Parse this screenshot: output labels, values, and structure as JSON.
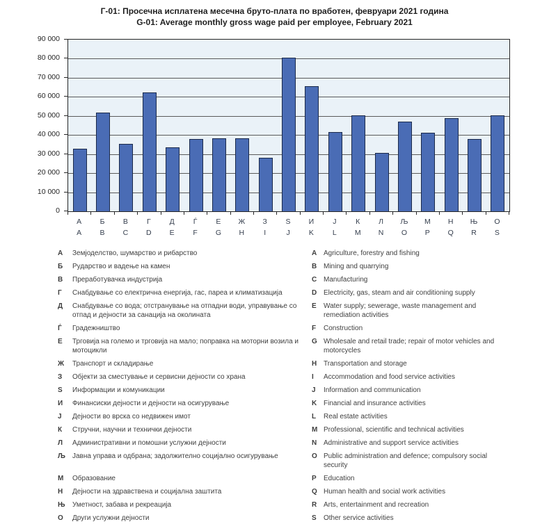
{
  "chart_data": {
    "type": "bar",
    "title_mk": "Г-01: Просечна исплатена месечна бруто-плата по вработен, февруари 2021 година",
    "title_en": "G-01: Average monthly gross wage paid per employee, February 2021",
    "xlabel": "",
    "ylabel": "",
    "ylim": [
      0,
      90000
    ],
    "grid": true,
    "legend_position": "none",
    "yticks": [
      0,
      10000,
      20000,
      30000,
      40000,
      50000,
      60000,
      70000,
      80000,
      90000
    ],
    "ytick_labels": [
      "0",
      "10 000",
      "20 000",
      "30 000",
      "40 000",
      "50 000",
      "60 000",
      "70 000",
      "80 000",
      "90 000"
    ],
    "categories_mk": [
      "А",
      "Б",
      "В",
      "Г",
      "Д",
      "Ѓ",
      "Е",
      "Ж",
      "З",
      "Ѕ",
      "И",
      "Ј",
      "К",
      "Л",
      "Љ",
      "М",
      "Н",
      "Њ",
      "О"
    ],
    "categories_en": [
      "A",
      "B",
      "C",
      "D",
      "E",
      "F",
      "G",
      "H",
      "I",
      "J",
      "K",
      "L",
      "M",
      "N",
      "O",
      "P",
      "Q",
      "R",
      "S"
    ],
    "values": [
      32900,
      51600,
      35200,
      62400,
      33500,
      37900,
      38100,
      38100,
      28000,
      80500,
      65500,
      41500,
      50200,
      30700,
      46900,
      41300,
      49000,
      37900,
      50200
    ],
    "colors": {
      "bar": "#4a6cb5",
      "bar_border": "#1b2a4a",
      "plot_bg": "#eaf2f8",
      "gridline": "#5a5a5a",
      "plot_border": "#262626"
    }
  },
  "legend": {
    "rows": [
      {
        "mk_letter": "А",
        "mk_text": "Земјоделство, шумарство и рибарство",
        "en_letter": "A",
        "en_text": "Agriculture, forestry and fishing"
      },
      {
        "mk_letter": "Б",
        "mk_text": "Рударство и вадење на камен",
        "en_letter": "B",
        "en_text": "Mining and quarrying"
      },
      {
        "mk_letter": "В",
        "mk_text": "Преработувачка индустрија",
        "en_letter": "C",
        "en_text": "Manufacturing"
      },
      {
        "mk_letter": "Г",
        "mk_text": "Снабдување со електрична енергија, гас, пареа и климатизација",
        "en_letter": "D",
        "en_text": "Electricity, gas, steam and air conditioning supply"
      },
      {
        "mk_letter": "Д",
        "mk_text": "Снабдување со вода; отстранување на отпадни води, управување со\nотпад и дејности за санација на околината",
        "en_letter": "E",
        "en_text": "Water supply; sewerage, waste management and\nremediation activities"
      },
      {
        "mk_letter": "Ѓ",
        "mk_text": "Градежништво",
        "en_letter": "F",
        "en_text": "Construction"
      },
      {
        "mk_letter": "Е",
        "mk_text": "Трговија на големо и трговија на мало; поправка на моторни возила и\nмотоцикли",
        "en_letter": "G",
        "en_text": "Wholesale and retail trade; repair of motor vehicles and\nmotorcycles"
      },
      {
        "mk_letter": "Ж",
        "mk_text": "Транспорт и складирање",
        "en_letter": "H",
        "en_text": "Transportation and storage"
      },
      {
        "mk_letter": "З",
        "mk_text": "Објекти за сместување и сервисни дејности со храна",
        "en_letter": "I",
        "en_text": "Accommodation and food service activities"
      },
      {
        "mk_letter": "Ѕ",
        "mk_text": "Информации и комуникации",
        "en_letter": "J",
        "en_text": "Information and communication"
      },
      {
        "mk_letter": "И",
        "mk_text": "Финансиски дејности и дејности на осигурување",
        "en_letter": "K",
        "en_text": "Financial and insurance activities"
      },
      {
        "mk_letter": "Ј",
        "mk_text": "Дејности во врска со недвижен имот",
        "en_letter": "L",
        "en_text": "Real estate activities"
      },
      {
        "mk_letter": "К",
        "mk_text": "Стручни, научни и технички дејности",
        "en_letter": "M",
        "en_text": "Professional, scientific and technical activities"
      },
      {
        "mk_letter": "Л",
        "mk_text": "Административни и помошни услужни дејности",
        "en_letter": "N",
        "en_text": "Administrative and support service activities"
      },
      {
        "mk_letter": "Љ",
        "mk_text": "Јавна управа и одбрана; задолжително социјално осигурување",
        "en_letter": "O",
        "en_text": "Public administration and defence; compulsory social\nsecurity"
      },
      {
        "mk_letter": "М",
        "mk_text": "Образование",
        "en_letter": "P",
        "en_text": "Education"
      },
      {
        "mk_letter": "Н",
        "mk_text": "Дејности на здравствена и социјална заштита",
        "en_letter": "Q",
        "en_text": "Human health and social work activities"
      },
      {
        "mk_letter": "Њ",
        "mk_text": "Уметност, забава и рекреација",
        "en_letter": "R",
        "en_text": "Arts, entertainment and recreation"
      },
      {
        "mk_letter": "О",
        "mk_text": "Други услужни дејности",
        "en_letter": "S",
        "en_text": "Other service activities"
      }
    ]
  }
}
